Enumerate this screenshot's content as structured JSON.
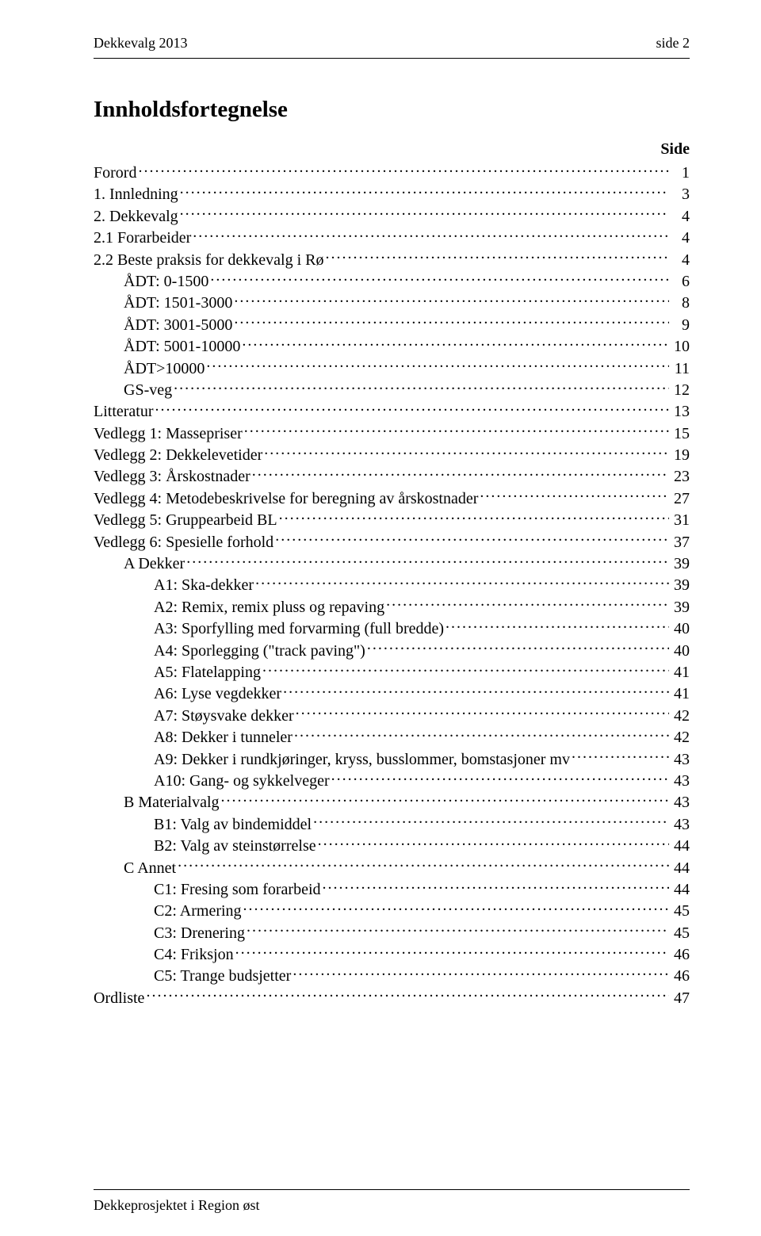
{
  "header": {
    "left": "Dekkevalg 2013",
    "right": "side 2"
  },
  "title": "Innholdsfortegnelse",
  "side_label": "Side",
  "footer": "Dekkeprosjektet i Region øst",
  "toc": [
    {
      "label": "Forord",
      "page": "1",
      "indent": 0
    },
    {
      "label": "1. Innledning",
      "page": "3",
      "indent": 0
    },
    {
      "label": "2. Dekkevalg",
      "page": "4",
      "indent": 0
    },
    {
      "label": "2.1 Forarbeider",
      "page": "4",
      "indent": 0
    },
    {
      "label": "2.2 Beste praksis for dekkevalg i Rø",
      "page": "4",
      "indent": 0
    },
    {
      "label": "ÅDT: 0-1500",
      "page": "6",
      "indent": 1
    },
    {
      "label": "ÅDT: 1501-3000",
      "page": "8",
      "indent": 1
    },
    {
      "label": "ÅDT: 3001-5000",
      "page": "9",
      "indent": 1
    },
    {
      "label": "ÅDT: 5001-10000",
      "page": "10",
      "indent": 1
    },
    {
      "label": "ÅDT>10000",
      "page": "11",
      "indent": 1
    },
    {
      "label": "GS-veg",
      "page": "12",
      "indent": 1
    },
    {
      "label": "Litteratur",
      "page": "13",
      "indent": 0
    },
    {
      "label": "Vedlegg 1: Massepriser",
      "page": "15",
      "indent": 0
    },
    {
      "label": "Vedlegg 2: Dekkelevetider",
      "page": "19",
      "indent": 0
    },
    {
      "label": "Vedlegg 3: Årskostnader",
      "page": "23",
      "indent": 0
    },
    {
      "label": "Vedlegg 4: Metodebeskrivelse for beregning av årskostnader",
      "page": "27",
      "indent": 0
    },
    {
      "label": "Vedlegg 5: Gruppearbeid BL",
      "page": "31",
      "indent": 0
    },
    {
      "label": "Vedlegg 6: Spesielle forhold",
      "page": "37",
      "indent": 0
    },
    {
      "label": "A Dekker",
      "page": "39",
      "indent": 1
    },
    {
      "label": "A1: Ska-dekker",
      "page": "39",
      "indent": 2
    },
    {
      "label": "A2: Remix, remix pluss og repaving",
      "page": "39",
      "indent": 2
    },
    {
      "label": "A3: Sporfylling med forvarming (full bredde)",
      "page": "40",
      "indent": 2
    },
    {
      "label": "A4: Sporlegging (\"track paving\")",
      "page": "40",
      "indent": 2
    },
    {
      "label": "A5: Flatelapping",
      "page": "41",
      "indent": 2
    },
    {
      "label": "A6: Lyse vegdekker",
      "page": "41",
      "indent": 2
    },
    {
      "label": "A7: Støysvake dekker",
      "page": "42",
      "indent": 2
    },
    {
      "label": "A8: Dekker i tunneler",
      "page": "42",
      "indent": 2
    },
    {
      "label": "A9: Dekker i rundkjøringer, kryss, busslommer, bomstasjoner mv",
      "page": "43",
      "indent": 2
    },
    {
      "label": "A10: Gang- og sykkelveger",
      "page": "43",
      "indent": 2
    },
    {
      "label": "B Materialvalg",
      "page": "43",
      "indent": 1
    },
    {
      "label": "B1: Valg av bindemiddel",
      "page": "43",
      "indent": 2
    },
    {
      "label": "B2: Valg av steinstørrelse",
      "page": "44",
      "indent": 2
    },
    {
      "label": "C Annet",
      "page": "44",
      "indent": 1
    },
    {
      "label": "C1: Fresing som forarbeid",
      "page": "44",
      "indent": 2
    },
    {
      "label": "C2: Armering",
      "page": "45",
      "indent": 2
    },
    {
      "label": "C3: Drenering",
      "page": "45",
      "indent": 2
    },
    {
      "label": "C4: Friksjon",
      "page": "46",
      "indent": 2
    },
    {
      "label": "C5: Trange budsjetter",
      "page": "46",
      "indent": 2
    },
    {
      "label": "Ordliste",
      "page": "47",
      "indent": 0
    }
  ]
}
